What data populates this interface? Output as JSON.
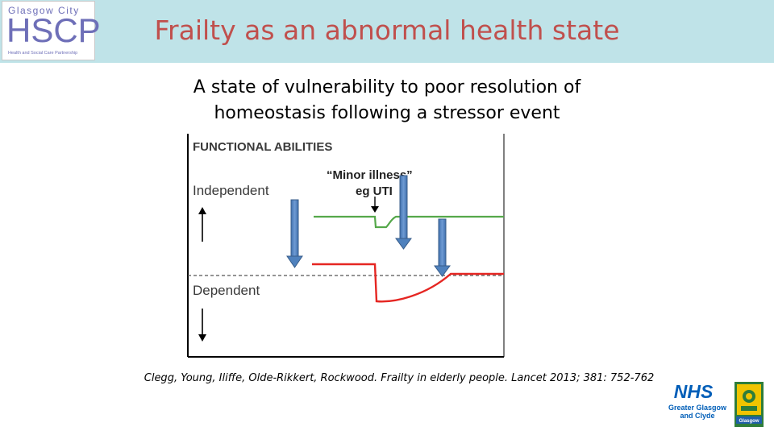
{
  "logo": {
    "line1": "Glasgow City",
    "line2": "HSCP",
    "line3": "Health and Social Care Partnership"
  },
  "slide": {
    "title": "Frailty as an abnormal health state",
    "subtitle_line1": "A state of vulnerability to poor resolution of",
    "subtitle_line2": "homeostasis following a stressor event",
    "citation": "Clegg, Young, Iliffe, Olde-Rikkert, Rockwood. Frailty in elderly people. Lancet 2013; 381: 752-762"
  },
  "diagram": {
    "heading": "FUNCTIONAL ABILITIES",
    "label_independent": "Independent",
    "label_dependent": "Dependent",
    "annotation_line1": "“Minor illness”",
    "annotation_line2": "eg UTI",
    "colors": {
      "fit_line": "#55a84a",
      "frail_line": "#e52622",
      "arrow_fill": "#4f81bd",
      "arrow_stroke": "#385d8a",
      "axis": "#000000"
    }
  },
  "partner_logos": {
    "nhs_badge": "NHS",
    "nhs_line1": "Greater Glasgow",
    "nhs_line2": "and Clyde",
    "crest_label": "Glasgow"
  }
}
